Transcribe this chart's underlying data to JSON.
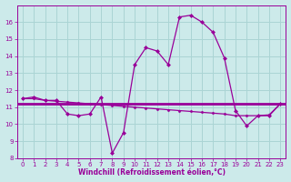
{
  "xlabel": "Windchill (Refroidissement éolien,°C)",
  "bg_color": "#cceaea",
  "grid_color": "#aad4d4",
  "line_color": "#990099",
  "hours": [
    0,
    1,
    2,
    3,
    4,
    5,
    6,
    7,
    8,
    9,
    10,
    11,
    12,
    13,
    14,
    15,
    16,
    17,
    18,
    19,
    20,
    21,
    22,
    23
  ],
  "temp_line1": [
    11.5,
    11.6,
    11.4,
    11.4,
    10.6,
    10.5,
    10.6,
    11.6,
    8.3,
    9.5,
    13.5,
    14.5,
    14.3,
    13.5,
    16.3,
    16.4,
    16.0,
    15.4,
    13.9,
    10.8,
    9.9,
    10.5,
    10.5,
    11.2
  ],
  "temp_line2": [
    11.5,
    11.5,
    11.4,
    11.35,
    11.3,
    11.25,
    11.2,
    11.15,
    11.1,
    11.05,
    11.0,
    10.95,
    10.9,
    10.85,
    10.8,
    10.75,
    10.7,
    10.65,
    10.6,
    10.5,
    10.5,
    10.5,
    10.55,
    11.2
  ],
  "hline_y": 11.2,
  "ylim": [
    8,
    17
  ],
  "yticks": [
    8,
    9,
    10,
    11,
    12,
    13,
    14,
    15,
    16
  ],
  "xticks": [
    0,
    1,
    2,
    3,
    4,
    5,
    6,
    7,
    8,
    9,
    10,
    11,
    12,
    13,
    14,
    15,
    16,
    17,
    18,
    19,
    20,
    21,
    22,
    23
  ],
  "tick_fontsize": 5.0,
  "xlabel_fontsize": 5.5
}
